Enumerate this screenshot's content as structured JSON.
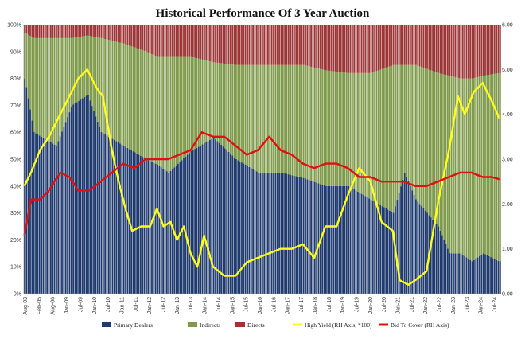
{
  "chart_data": {
    "type": "bar",
    "title": "Historical Performance Of 3 Year Auction",
    "left_axis": {
      "range": [
        0,
        100
      ],
      "ticks": [
        "0%",
        "10%",
        "20%",
        "30%",
        "40%",
        "50%",
        "60%",
        "70%",
        "80%",
        "90%",
        "100%"
      ]
    },
    "right_axis": {
      "range": [
        0,
        6
      ],
      "ticks": [
        "0.00",
        "1.00",
        "2.00",
        "3.00",
        "4.00",
        "5.00",
        "6.00"
      ]
    },
    "x_range": [
      2003.58,
      2024.75
    ],
    "x_ticks": [
      "Aug-03",
      "Feb-05",
      "Aug-06",
      "Jan-09",
      "Jul-09",
      "Jan-10",
      "Jul-10",
      "Jan-11",
      "Jul-11",
      "Jan-12",
      "Jul-12",
      "Jan-13",
      "Jul-13",
      "Jan-14",
      "Jul-14",
      "Jan-15",
      "Jul-15",
      "Jan-16",
      "Jul-16",
      "Jan-17",
      "Jul-17",
      "Jan-18",
      "Jul-18",
      "Jan-19",
      "Jul-19",
      "Jan-20",
      "Jul-20",
      "Jan-21",
      "Jul-21",
      "Jan-22",
      "Jul-22",
      "Jan-23",
      "Jul-23",
      "Jan-24",
      "Jul-24"
    ],
    "grid": false,
    "legend_position": "bottom",
    "stacked_series": [
      {
        "name": "Primary Dealers",
        "color": "#1f3a6e",
        "points": [
          [
            2003.6,
            80
          ],
          [
            2004.0,
            60
          ],
          [
            2005.0,
            55
          ],
          [
            2005.7,
            70
          ],
          [
            2006.4,
            74
          ],
          [
            2007.0,
            60
          ],
          [
            2008.0,
            55
          ],
          [
            2009.0,
            50
          ],
          [
            2009.5,
            48
          ],
          [
            2010.0,
            45
          ],
          [
            2011.0,
            53
          ],
          [
            2012.0,
            58
          ],
          [
            2013.0,
            50
          ],
          [
            2014.0,
            45
          ],
          [
            2015.0,
            45
          ],
          [
            2016.0,
            43
          ],
          [
            2017.0,
            40
          ],
          [
            2018.0,
            40
          ],
          [
            2019.0,
            35
          ],
          [
            2020.0,
            30
          ],
          [
            2020.5,
            45
          ],
          [
            2021.0,
            35
          ],
          [
            2022.0,
            25
          ],
          [
            2022.5,
            15
          ],
          [
            2023.0,
            15
          ],
          [
            2023.5,
            12
          ],
          [
            2024.0,
            15
          ],
          [
            2024.7,
            12
          ]
        ]
      },
      {
        "name": "Indirects",
        "color": "#7f9a4a",
        "points": [
          [
            2003.6,
            17
          ],
          [
            2004.0,
            35
          ],
          [
            2005.0,
            40
          ],
          [
            2005.7,
            25
          ],
          [
            2006.4,
            22
          ],
          [
            2007.0,
            35
          ],
          [
            2008.0,
            38
          ],
          [
            2009.0,
            40
          ],
          [
            2009.5,
            40
          ],
          [
            2010.0,
            43
          ],
          [
            2011.0,
            35
          ],
          [
            2012.0,
            28
          ],
          [
            2013.0,
            35
          ],
          [
            2014.0,
            40
          ],
          [
            2015.0,
            40
          ],
          [
            2016.0,
            42
          ],
          [
            2017.0,
            43
          ],
          [
            2018.0,
            42
          ],
          [
            2019.0,
            47
          ],
          [
            2020.0,
            55
          ],
          [
            2020.5,
            40
          ],
          [
            2021.0,
            50
          ],
          [
            2022.0,
            57
          ],
          [
            2022.5,
            66
          ],
          [
            2023.0,
            65
          ],
          [
            2023.5,
            68
          ],
          [
            2024.0,
            66
          ],
          [
            2024.7,
            70
          ]
        ]
      },
      {
        "name": "Directs",
        "color": "#9c3535",
        "points": [
          [
            2003.6,
            3
          ],
          [
            2004.0,
            5
          ],
          [
            2005.0,
            5
          ],
          [
            2005.7,
            5
          ],
          [
            2006.4,
            4
          ],
          [
            2007.0,
            5
          ],
          [
            2008.0,
            7
          ],
          [
            2009.0,
            10
          ],
          [
            2009.5,
            12
          ],
          [
            2010.0,
            12
          ],
          [
            2011.0,
            12
          ],
          [
            2012.0,
            14
          ],
          [
            2013.0,
            15
          ],
          [
            2014.0,
            15
          ],
          [
            2015.0,
            15
          ],
          [
            2016.0,
            15
          ],
          [
            2017.0,
            17
          ],
          [
            2018.0,
            18
          ],
          [
            2019.0,
            18
          ],
          [
            2020.0,
            15
          ],
          [
            2020.5,
            15
          ],
          [
            2021.0,
            15
          ],
          [
            2022.0,
            18
          ],
          [
            2022.5,
            19
          ],
          [
            2023.0,
            20
          ],
          [
            2023.5,
            20
          ],
          [
            2024.0,
            19
          ],
          [
            2024.7,
            18
          ]
        ]
      }
    ],
    "line_series": [
      {
        "name": "High Yield (RH Axis, *100)",
        "color": "#ffff1a",
        "axis": "right",
        "points": [
          [
            2003.6,
            2.4
          ],
          [
            2003.9,
            2.7
          ],
          [
            2004.3,
            3.2
          ],
          [
            2004.7,
            3.5
          ],
          [
            2005.2,
            4.0
          ],
          [
            2005.6,
            4.4
          ],
          [
            2006.0,
            4.8
          ],
          [
            2006.4,
            5.0
          ],
          [
            2006.8,
            4.6
          ],
          [
            2007.1,
            4.4
          ],
          [
            2007.5,
            3.2
          ],
          [
            2007.8,
            2.5
          ],
          [
            2008.1,
            1.9
          ],
          [
            2008.4,
            1.4
          ],
          [
            2008.8,
            1.5
          ],
          [
            2009.2,
            1.5
          ],
          [
            2009.5,
            1.9
          ],
          [
            2009.8,
            1.5
          ],
          [
            2010.1,
            1.6
          ],
          [
            2010.4,
            1.2
          ],
          [
            2010.7,
            1.5
          ],
          [
            2011.0,
            0.9
          ],
          [
            2011.3,
            0.6
          ],
          [
            2011.6,
            1.3
          ],
          [
            2012.0,
            0.6
          ],
          [
            2012.5,
            0.4
          ],
          [
            2013.0,
            0.4
          ],
          [
            2013.5,
            0.7
          ],
          [
            2014.0,
            0.8
          ],
          [
            2014.5,
            0.9
          ],
          [
            2015.0,
            1.0
          ],
          [
            2015.5,
            1.0
          ],
          [
            2016.0,
            1.1
          ],
          [
            2016.5,
            0.8
          ],
          [
            2017.0,
            1.5
          ],
          [
            2017.5,
            1.5
          ],
          [
            2018.0,
            2.2
          ],
          [
            2018.5,
            2.8
          ],
          [
            2019.0,
            2.5
          ],
          [
            2019.5,
            1.6
          ],
          [
            2020.0,
            1.4
          ],
          [
            2020.3,
            0.3
          ],
          [
            2020.7,
            0.2
          ],
          [
            2021.0,
            0.3
          ],
          [
            2021.5,
            0.5
          ],
          [
            2022.0,
            2.0
          ],
          [
            2022.5,
            3.2
          ],
          [
            2022.9,
            4.4
          ],
          [
            2023.2,
            4.0
          ],
          [
            2023.6,
            4.5
          ],
          [
            2024.0,
            4.7
          ],
          [
            2024.4,
            4.3
          ],
          [
            2024.75,
            3.9
          ]
        ]
      },
      {
        "name": "Bid To Cover (RH Axis)",
        "color": "#e01010",
        "axis": "right",
        "points": [
          [
            2003.6,
            1.3
          ],
          [
            2003.9,
            2.1
          ],
          [
            2004.3,
            2.1
          ],
          [
            2004.7,
            2.3
          ],
          [
            2005.2,
            2.7
          ],
          [
            2005.6,
            2.6
          ],
          [
            2006.0,
            2.3
          ],
          [
            2006.5,
            2.3
          ],
          [
            2007.0,
            2.5
          ],
          [
            2007.5,
            2.7
          ],
          [
            2008.0,
            2.9
          ],
          [
            2008.5,
            2.8
          ],
          [
            2009.0,
            3.0
          ],
          [
            2009.5,
            3.0
          ],
          [
            2010.0,
            3.0
          ],
          [
            2010.5,
            3.1
          ],
          [
            2011.0,
            3.2
          ],
          [
            2011.5,
            3.6
          ],
          [
            2012.0,
            3.5
          ],
          [
            2012.5,
            3.5
          ],
          [
            2013.0,
            3.3
          ],
          [
            2013.5,
            3.1
          ],
          [
            2014.0,
            3.2
          ],
          [
            2014.5,
            3.5
          ],
          [
            2015.0,
            3.2
          ],
          [
            2015.5,
            3.1
          ],
          [
            2016.0,
            2.9
          ],
          [
            2016.5,
            2.8
          ],
          [
            2017.0,
            2.9
          ],
          [
            2017.5,
            2.9
          ],
          [
            2018.0,
            2.8
          ],
          [
            2018.5,
            2.6
          ],
          [
            2019.0,
            2.6
          ],
          [
            2019.5,
            2.5
          ],
          [
            2020.0,
            2.5
          ],
          [
            2020.5,
            2.5
          ],
          [
            2021.0,
            2.4
          ],
          [
            2021.5,
            2.4
          ],
          [
            2022.0,
            2.5
          ],
          [
            2022.5,
            2.6
          ],
          [
            2023.0,
            2.7
          ],
          [
            2023.5,
            2.7
          ],
          [
            2024.0,
            2.6
          ],
          [
            2024.4,
            2.6
          ],
          [
            2024.75,
            2.55
          ]
        ]
      }
    ],
    "legend": [
      {
        "label": "Primary Dealers",
        "color": "#1f3a6e",
        "kind": "box"
      },
      {
        "label": "Indirects",
        "color": "#7f9a4a",
        "kind": "box"
      },
      {
        "label": "Directs",
        "color": "#9c3535",
        "kind": "box"
      },
      {
        "label": "High Yield (RH Axis, *100)",
        "color": "#ffff1a",
        "kind": "line"
      },
      {
        "label": "Bid To Cover (RH Axis)",
        "color": "#e01010",
        "kind": "line"
      }
    ]
  }
}
